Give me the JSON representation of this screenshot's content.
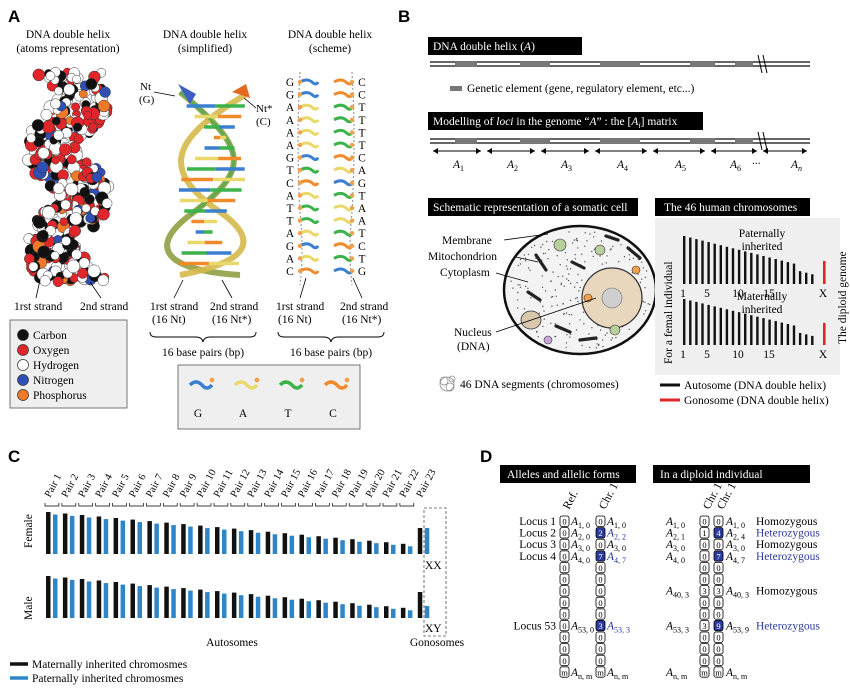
{
  "panel_a": {
    "label": "A",
    "col1_title": [
      "DNA double helix",
      "(atoms representation)"
    ],
    "col2_title": [
      "DNA double helix",
      "(simplified)"
    ],
    "col3_title": [
      "DNA double helix",
      "(scheme)"
    ],
    "nt_left": [
      "Nt",
      "(G)"
    ],
    "nt_right": [
      "Nt*",
      "(C)"
    ],
    "strand1_label": "1rst strand",
    "strand2_label": "2nd strand",
    "strand1_nt": [
      "1rst strand",
      "(16 Nt)"
    ],
    "strand2_nt": [
      "2nd strand",
      "(16 Nt*)"
    ],
    "bp_label": "16 base pairs (bp)",
    "scheme_left": [
      "G",
      "G",
      "A",
      "A",
      "A",
      "A",
      "G",
      "T",
      "C",
      "A",
      "T",
      "T",
      "A",
      "G",
      "A",
      "C"
    ],
    "scheme_right": [
      "C",
      "C",
      "T",
      "T",
      "T",
      "T",
      "C",
      "A",
      "G",
      "T",
      "A",
      "A",
      "T",
      "C",
      "T",
      "G"
    ],
    "legend": [
      {
        "label": "Carbon",
        "color": "#111111"
      },
      {
        "label": "Oxygen",
        "color": "#e0262a"
      },
      {
        "label": "Hydrogen",
        "color": "#ffffff"
      },
      {
        "label": "Nitrogen",
        "color": "#2f4fb5"
      },
      {
        "label": "Phosphorus",
        "color": "#f07a2a"
      }
    ],
    "bases": [
      {
        "label": "G",
        "color": "#3a7fd0"
      },
      {
        "label": "A",
        "color": "#e9d86a"
      },
      {
        "label": "T",
        "color": "#3bb34a"
      },
      {
        "label": "C",
        "color": "#f08a2a"
      }
    ]
  },
  "panel_b": {
    "label": "B",
    "helix_title_prefix": "DNA double helix (",
    "helix_title_var": "A",
    "helix_title_suffix": ")",
    "genetic_element": "Genetic element (gene, regulatory element, etc...)",
    "modelling_title_prefix": "Modelling of ",
    "modelling_title_loci": "loci",
    "modelling_title_mid": " in the genome “",
    "modelling_title_var": "A",
    "modelling_title_mid2": "” : the [",
    "modelling_title_var2": "A",
    "modelling_title_sub": "i",
    "modelling_title_end": "] matrix",
    "loci": [
      "1",
      "2",
      "3",
      "4",
      "5",
      "6",
      "n"
    ],
    "ellipsis": "...",
    "cell_title": "Schematic representation of a somatic cell",
    "cell_labels": [
      "Membrane",
      "Mitochondrion",
      "Cytoplasm",
      "Nucleus",
      "(DNA)"
    ],
    "segments_label": "46 DNA segments (chromosomes)",
    "chrom_title": "The 46 human chromosomes",
    "paternal_label": [
      "Paternally",
      "inherited"
    ],
    "maternal_label": [
      "Maternally",
      "inherited"
    ],
    "axis_ticks": [
      "1",
      "5",
      "10",
      "15",
      "X"
    ],
    "femal_label": "For a femal individual",
    "diploid_label": "The diploid genome",
    "legend_autosome": "Autosome (DNA double helix)",
    "legend_gonosome": "Gonosome (DNA double helix)",
    "autosome_color": "#111111",
    "gonosome_color": "#e0262a"
  },
  "panel_c": {
    "label": "C",
    "pairs": [
      "Pair 1",
      "Pair 2",
      "Pair 3",
      "Pair 4",
      "Pair 5",
      "Pair 6",
      "Pair 7",
      "Pair 8",
      "Pair 9",
      "Pair 10",
      "Pair 11",
      "Pair 12",
      "Pair 13",
      "Pair 14",
      "Pair 15",
      "Pair 16",
      "Pair 17",
      "Pair 18",
      "Pair 19",
      "Pair 20",
      "Pair 21",
      "Pair 22",
      "Pair 23"
    ],
    "female_label": "Female",
    "male_label": "Male",
    "female_gono": "XX",
    "male_gono": "XY",
    "autosomes_label": "Autosomes",
    "gonosomes_label": "Gonosomes",
    "legend_maternal": "Maternally inherited chromosmes",
    "legend_paternal": "Paternally inherited chromosmes",
    "maternal_color": "#111111",
    "paternal_color": "#2e86c8"
  },
  "panel_d": {
    "label": "D",
    "alleles_title": "Alleles and allelic forms",
    "diploid_title": "In a diploid individual",
    "ref_label": "Ref.",
    "chr_label": "Chr. 1",
    "loci_labels": [
      "Locus 1",
      "Locus 2",
      "Locus 3",
      "Locus 4",
      "Locus 53"
    ],
    "ref_forms": [
      "1, 0",
      "2, 0",
      "3, 0",
      "4, 0",
      "53, 0",
      "n, m"
    ],
    "chr_forms": [
      "1, 0",
      "2, 2",
      "3, 0",
      "4, 7",
      "53, 3",
      "n, m"
    ],
    "diploid_left": [
      "1, 0",
      "2, 1",
      "3, 0",
      "4, 0",
      "40, 3",
      "53, 3",
      "n, m"
    ],
    "diploid_right": [
      "1, 0",
      "2, 4",
      "3, 0",
      "4, 7",
      "40, 3",
      "53, 9",
      "n, m"
    ],
    "status": [
      "Homozygous",
      "Heterozygous",
      "Homozygous",
      "Heterozygous",
      "Homozygous",
      "Heterozygous"
    ],
    "hetero_color": "#2b3a9e"
  }
}
